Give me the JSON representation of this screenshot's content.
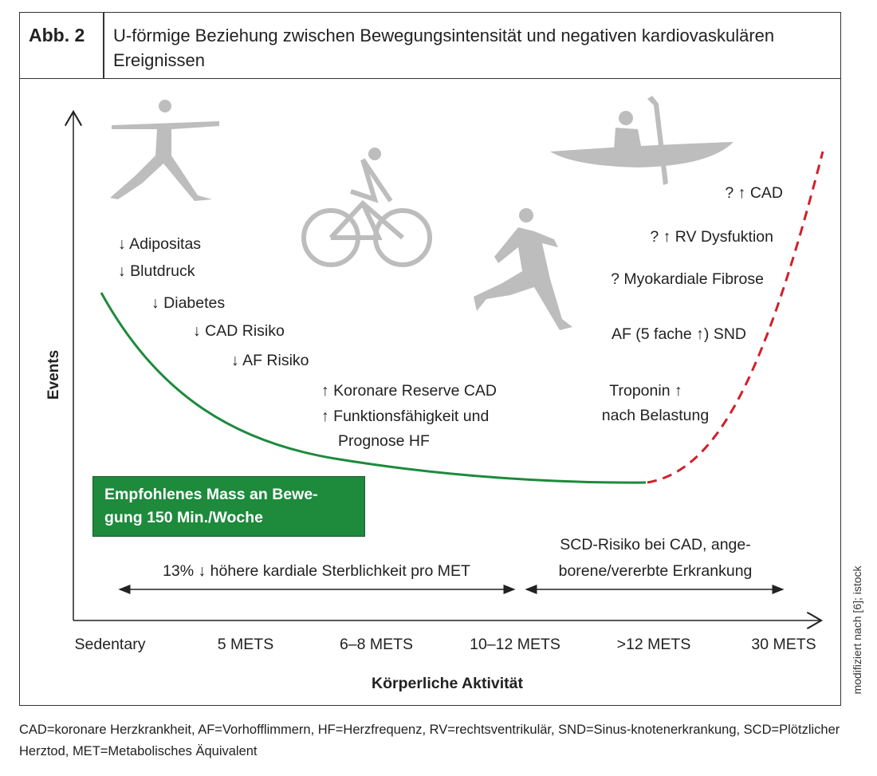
{
  "header": {
    "figure_number": "Abb. 2",
    "title": "U-förmige Beziehung zwischen Bewegungsintensität und negativen kardiovaskulären Ereignissen"
  },
  "axes": {
    "y_label": "Events",
    "x_label": "Körperliche Aktivität",
    "x_ticks": [
      "Sedentary",
      "5 METS",
      "6–8 METS",
      "10–12 METS",
      ">12 METS",
      "30 METS"
    ]
  },
  "left_effects": [
    "↓ Adipositas",
    "↓ Blutdruck",
    "↓ Diabetes",
    "↓ CAD Risiko",
    "↓ AF Risiko"
  ],
  "middle_effects": [
    "↑  Koronare Reserve CAD",
    "↑ Funktionsfähigkeit und",
    "Prognose HF"
  ],
  "right_effects": [
    "? ↑ CAD",
    "? ↑ RV Dysfuktion",
    "? Myokardiale Fibrose",
    "AF (5 fache ↑) SND"
  ],
  "troponin": [
    "Troponin ↑",
    "nach Belastung"
  ],
  "recommendation": [
    "Empfohlenes Mass an Bewe-",
    "gung 150 Min./Woche"
  ],
  "range_left": "13% ↓ höhere kardiale Sterblichkeit pro MET",
  "range_right": [
    "SCD-Risiko bei CAD, ange-",
    "borene/vererbte Erkrankung"
  ],
  "credit": "modifiziert nach [6]; istock",
  "footnote": "CAD=koronare Herzkrankheit, AF=Vorhofflimmern, HF=Herzfrequenz, RV=rechtsventrikulär, SND=Sinus-knotenerkrankung, SCD=Plötzlicher Herztod, MET=Metabolisches Äquivalent",
  "colors": {
    "curve_good": "#1d8a3c",
    "curve_bad": "#d0202a",
    "silhouette": "#bdbdbd"
  }
}
